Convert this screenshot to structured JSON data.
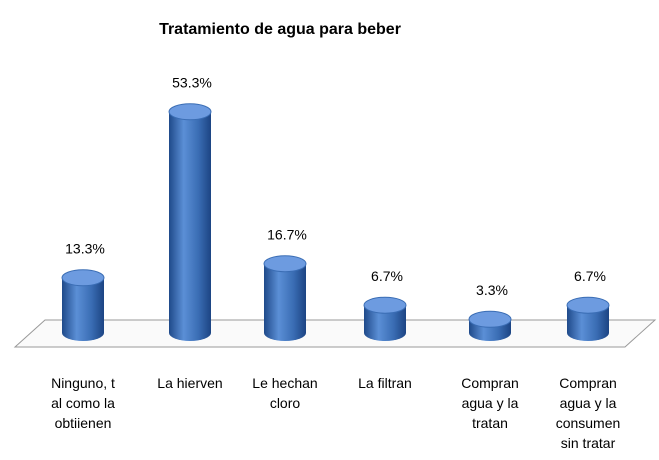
{
  "chart_data": {
    "type": "bar",
    "title": "Tratamiento de agua para beber",
    "categories": [
      "Ninguno, t\nal como la\nobtiienen",
      "La hierven",
      "Le hechan\ncloro",
      "La filtran",
      "Compran\nagua y la\ntratan",
      "Compran\nagua y la\nconsumen\nsin tratar"
    ],
    "values": [
      13.3,
      53.3,
      16.7,
      6.7,
      3.3,
      6.7
    ],
    "value_labels": [
      "13.3%",
      "53.3%",
      "16.7%",
      "6.7%",
      "3.3%",
      "6.7%"
    ],
    "color": "#3a6db4"
  }
}
